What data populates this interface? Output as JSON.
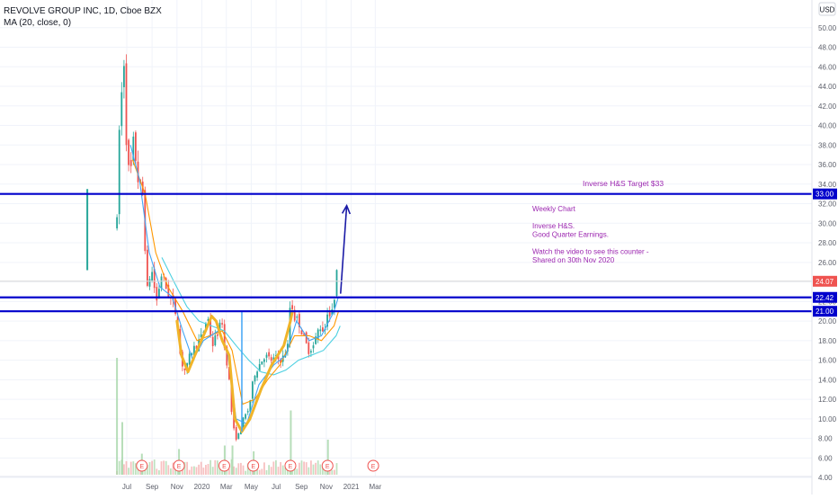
{
  "header": {
    "symbol_line": "REVOLVE GROUP INC, 1D, Cboe BZX",
    "indicator_line": "MA (20, close, 0)",
    "currency_label": "USD"
  },
  "annotations": {
    "target_label": "Inverse H&S Target $33",
    "note_lines": [
      "Weekly Chart",
      "",
      "Inverse H&S.",
      "Good Quarter Earnings.",
      "",
      "Watch the video to see this counter -",
      "Shared on 30th Nov 2020"
    ]
  },
  "colors": {
    "up_candle": "#26a69a",
    "down_candle": "#ef5350",
    "horizontal_lines": "#0000cc",
    "price_badge": "#ef5350",
    "ma_short": "#42a5f5",
    "ma_medium": "#ff9800",
    "ma_long": "#4dd0e1",
    "pattern_curve": "#f0b429",
    "note_text": "#9c27b0",
    "arrow": "#1a1aa6",
    "target_marker_line": "#42a5f5"
  },
  "chart_data": {
    "type": "candlestick",
    "title": "REVOLVE GROUP INC, 1D, Cboe BZX",
    "ylim": [
      3,
      52
    ],
    "y_ticks": [
      "4.00",
      "6.00",
      "8.00",
      "10.00",
      "12.00",
      "14.00",
      "16.00",
      "18.00",
      "20.00",
      "22.00",
      "24.00",
      "26.00",
      "28.00",
      "30.00",
      "32.00",
      "34.00",
      "36.00",
      "38.00",
      "40.00",
      "42.00",
      "44.00",
      "46.00",
      "48.00",
      "50.00"
    ],
    "x_ticks": [
      {
        "label": "Jul",
        "date": "2019-07-01"
      },
      {
        "label": "Sep",
        "date": "2019-09-01"
      },
      {
        "label": "Nov",
        "date": "2019-11-01"
      },
      {
        "label": "2020",
        "date": "2020-01-01"
      },
      {
        "label": "Mar",
        "date": "2020-03-01"
      },
      {
        "label": "May",
        "date": "2020-05-01"
      },
      {
        "label": "Jul",
        "date": "2020-07-01"
      },
      {
        "label": "Sep",
        "date": "2020-09-01"
      },
      {
        "label": "Nov",
        "date": "2020-11-01"
      },
      {
        "label": "2021",
        "date": "2021-01-01"
      },
      {
        "label": "Mar",
        "date": "2021-03-01"
      }
    ],
    "horizontal_levels": [
      {
        "value": 33.0,
        "label": "33.00"
      },
      {
        "value": 22.42,
        "label": "22.42"
      },
      {
        "value": 21.0,
        "label": "21.00"
      }
    ],
    "last_price": {
      "value": 24.07,
      "label": "24.07"
    },
    "earnings_markers": [
      "2019-08-07",
      "2019-11-06",
      "2020-02-25",
      "2020-05-06",
      "2020-08-05",
      "2020-11-04",
      "2021-02-24"
    ],
    "price_path": [
      {
        "date": "2019-06-07",
        "close": 30.0
      },
      {
        "date": "2019-06-12",
        "close": 39.0
      },
      {
        "date": "2019-06-18",
        "close": 43.0
      },
      {
        "date": "2019-06-24",
        "close": 47.0
      },
      {
        "date": "2019-06-28",
        "close": 40.0
      },
      {
        "date": "2019-07-08",
        "close": 34.0
      },
      {
        "date": "2019-07-18",
        "close": 38.5
      },
      {
        "date": "2019-07-30",
        "close": 34.0
      },
      {
        "date": "2019-08-09",
        "close": 33.0
      },
      {
        "date": "2019-08-20",
        "close": 23.0
      },
      {
        "date": "2019-08-30",
        "close": 25.5
      },
      {
        "date": "2019-09-12",
        "close": 22.0
      },
      {
        "date": "2019-09-25",
        "close": 25.0
      },
      {
        "date": "2019-10-08",
        "close": 23.0
      },
      {
        "date": "2019-10-20",
        "close": 22.0
      },
      {
        "date": "2019-11-01",
        "close": 20.5
      },
      {
        "date": "2019-11-10",
        "close": 16.0
      },
      {
        "date": "2019-11-22",
        "close": 14.8
      },
      {
        "date": "2019-12-05",
        "close": 16.8
      },
      {
        "date": "2019-12-18",
        "close": 17.5
      },
      {
        "date": "2020-01-02",
        "close": 18.5
      },
      {
        "date": "2020-01-15",
        "close": 20.5
      },
      {
        "date": "2020-01-27",
        "close": 17.5
      },
      {
        "date": "2020-02-10",
        "close": 19.0
      },
      {
        "date": "2020-02-20",
        "close": 20.0
      },
      {
        "date": "2020-02-26",
        "close": 17.0
      },
      {
        "date": "2020-03-06",
        "close": 15.0
      },
      {
        "date": "2020-03-16",
        "close": 9.5
      },
      {
        "date": "2020-03-24",
        "close": 8.0
      },
      {
        "date": "2020-04-02",
        "close": 8.5
      },
      {
        "date": "2020-04-12",
        "close": 10.0
      },
      {
        "date": "2020-04-25",
        "close": 11.0
      },
      {
        "date": "2020-05-08",
        "close": 14.5
      },
      {
        "date": "2020-05-20",
        "close": 15.5
      },
      {
        "date": "2020-06-03",
        "close": 16.5
      },
      {
        "date": "2020-06-18",
        "close": 16.0
      },
      {
        "date": "2020-07-01",
        "close": 16.2
      },
      {
        "date": "2020-07-15",
        "close": 16.0
      },
      {
        "date": "2020-07-30",
        "close": 17.5
      },
      {
        "date": "2020-08-06",
        "close": 23.0
      },
      {
        "date": "2020-08-12",
        "close": 20.5
      },
      {
        "date": "2020-08-25",
        "close": 20.0
      },
      {
        "date": "2020-09-05",
        "close": 18.5
      },
      {
        "date": "2020-09-18",
        "close": 17.0
      },
      {
        "date": "2020-10-01",
        "close": 17.5
      },
      {
        "date": "2020-10-15",
        "close": 19.5
      },
      {
        "date": "2020-10-28",
        "close": 19.0
      },
      {
        "date": "2020-11-05",
        "close": 21.5
      },
      {
        "date": "2020-11-12",
        "close": 20.0
      },
      {
        "date": "2020-11-20",
        "close": 22.0
      },
      {
        "date": "2020-11-26",
        "close": 26.0
      },
      {
        "date": "2020-12-01",
        "close": 24.07
      }
    ],
    "ma_short": [
      {
        "date": "2019-07-10",
        "value": 38.0
      },
      {
        "date": "2019-08-01",
        "value": 34.5
      },
      {
        "date": "2019-08-25",
        "value": 27.0
      },
      {
        "date": "2019-09-20",
        "value": 23.5
      },
      {
        "date": "2019-10-20",
        "value": 22.5
      },
      {
        "date": "2019-11-15",
        "value": 19.0
      },
      {
        "date": "2019-12-10",
        "value": 16.0
      },
      {
        "date": "2020-01-05",
        "value": 18.0
      },
      {
        "date": "2020-02-10",
        "value": 19.0
      },
      {
        "date": "2020-03-05",
        "value": 16.5
      },
      {
        "date": "2020-03-25",
        "value": 10.0
      },
      {
        "date": "2020-04-20",
        "value": 9.5
      },
      {
        "date": "2020-05-20",
        "value": 13.5
      },
      {
        "date": "2020-06-25",
        "value": 15.5
      },
      {
        "date": "2020-07-25",
        "value": 16.5
      },
      {
        "date": "2020-08-20",
        "value": 20.0
      },
      {
        "date": "2020-09-20",
        "value": 18.0
      },
      {
        "date": "2020-10-20",
        "value": 18.5
      },
      {
        "date": "2020-11-20",
        "value": 21.0
      },
      {
        "date": "2020-12-01",
        "value": 22.5
      }
    ],
    "ma_medium": [
      {
        "date": "2019-07-15",
        "value": 36.5
      },
      {
        "date": "2019-08-15",
        "value": 33.0
      },
      {
        "date": "2019-09-10",
        "value": 27.0
      },
      {
        "date": "2019-10-10",
        "value": 23.5
      },
      {
        "date": "2019-11-15",
        "value": 21.0
      },
      {
        "date": "2019-12-20",
        "value": 18.0
      },
      {
        "date": "2020-01-20",
        "value": 18.5
      },
      {
        "date": "2020-02-20",
        "value": 19.0
      },
      {
        "date": "2020-03-15",
        "value": 17.0
      },
      {
        "date": "2020-04-10",
        "value": 11.5
      },
      {
        "date": "2020-05-10",
        "value": 12.0
      },
      {
        "date": "2020-06-10",
        "value": 14.0
      },
      {
        "date": "2020-07-10",
        "value": 15.5
      },
      {
        "date": "2020-08-15",
        "value": 18.5
      },
      {
        "date": "2020-09-20",
        "value": 18.5
      },
      {
        "date": "2020-10-20",
        "value": 18.0
      },
      {
        "date": "2020-11-20",
        "value": 19.5
      },
      {
        "date": "2020-12-01",
        "value": 21.0
      }
    ],
    "ma_long": [
      {
        "date": "2019-09-25",
        "value": 26.5
      },
      {
        "date": "2019-10-25",
        "value": 24.0
      },
      {
        "date": "2019-11-25",
        "value": 21.5
      },
      {
        "date": "2019-12-25",
        "value": 20.0
      },
      {
        "date": "2020-01-25",
        "value": 19.5
      },
      {
        "date": "2020-02-25",
        "value": 19.0
      },
      {
        "date": "2020-03-25",
        "value": 17.5
      },
      {
        "date": "2020-04-25",
        "value": 16.0
      },
      {
        "date": "2020-05-25",
        "value": 14.8
      },
      {
        "date": "2020-06-25",
        "value": 14.5
      },
      {
        "date": "2020-07-25",
        "value": 15.0
      },
      {
        "date": "2020-08-25",
        "value": 16.0
      },
      {
        "date": "2020-09-25",
        "value": 16.5
      },
      {
        "date": "2020-10-25",
        "value": 17.0
      },
      {
        "date": "2020-11-25",
        "value": 18.5
      },
      {
        "date": "2020-12-05",
        "value": 19.5
      }
    ],
    "pattern_curves": [
      [
        {
          "date": "2019-11-01",
          "value": 20.0
        },
        {
          "date": "2019-11-12",
          "value": 16.5
        },
        {
          "date": "2019-11-28",
          "value": 14.8
        },
        {
          "date": "2019-12-18",
          "value": 16.8
        },
        {
          "date": "2020-01-10",
          "value": 19.0
        },
        {
          "date": "2020-01-25",
          "value": 20.5
        },
        {
          "date": "2020-02-05",
          "value": 20.0
        },
        {
          "date": "2020-02-20",
          "value": 18.0
        },
        {
          "date": "2020-03-08",
          "value": 16.5
        },
        {
          "date": "2020-03-22",
          "value": 10.0
        },
        {
          "date": "2020-04-08",
          "value": 8.7
        },
        {
          "date": "2020-04-28",
          "value": 10.0
        },
        {
          "date": "2020-05-25",
          "value": 13.0
        },
        {
          "date": "2020-06-20",
          "value": 15.5
        },
        {
          "date": "2020-07-20",
          "value": 17.5
        },
        {
          "date": "2020-08-05",
          "value": 20.0
        },
        {
          "date": "2020-08-10",
          "value": 21.0
        }
      ]
    ],
    "target_marker": {
      "date": "2020-04-08",
      "from": 8.7,
      "to": 21.0
    },
    "projection_arrow": {
      "from_date": "2020-12-06",
      "from_value": 22.8,
      "to_date": "2020-12-21",
      "to_value": 31.8
    },
    "volume_spikes": [
      {
        "date": "2019-06-07",
        "value": 1.0
      },
      {
        "date": "2019-06-20",
        "value": 0.45
      },
      {
        "date": "2019-08-07",
        "value": 0.18
      },
      {
        "date": "2019-11-06",
        "value": 0.22
      },
      {
        "date": "2020-02-26",
        "value": 0.25
      },
      {
        "date": "2020-03-16",
        "value": 0.25
      },
      {
        "date": "2020-05-07",
        "value": 0.2
      },
      {
        "date": "2020-08-06",
        "value": 0.55
      },
      {
        "date": "2020-11-05",
        "value": 0.3
      }
    ]
  }
}
